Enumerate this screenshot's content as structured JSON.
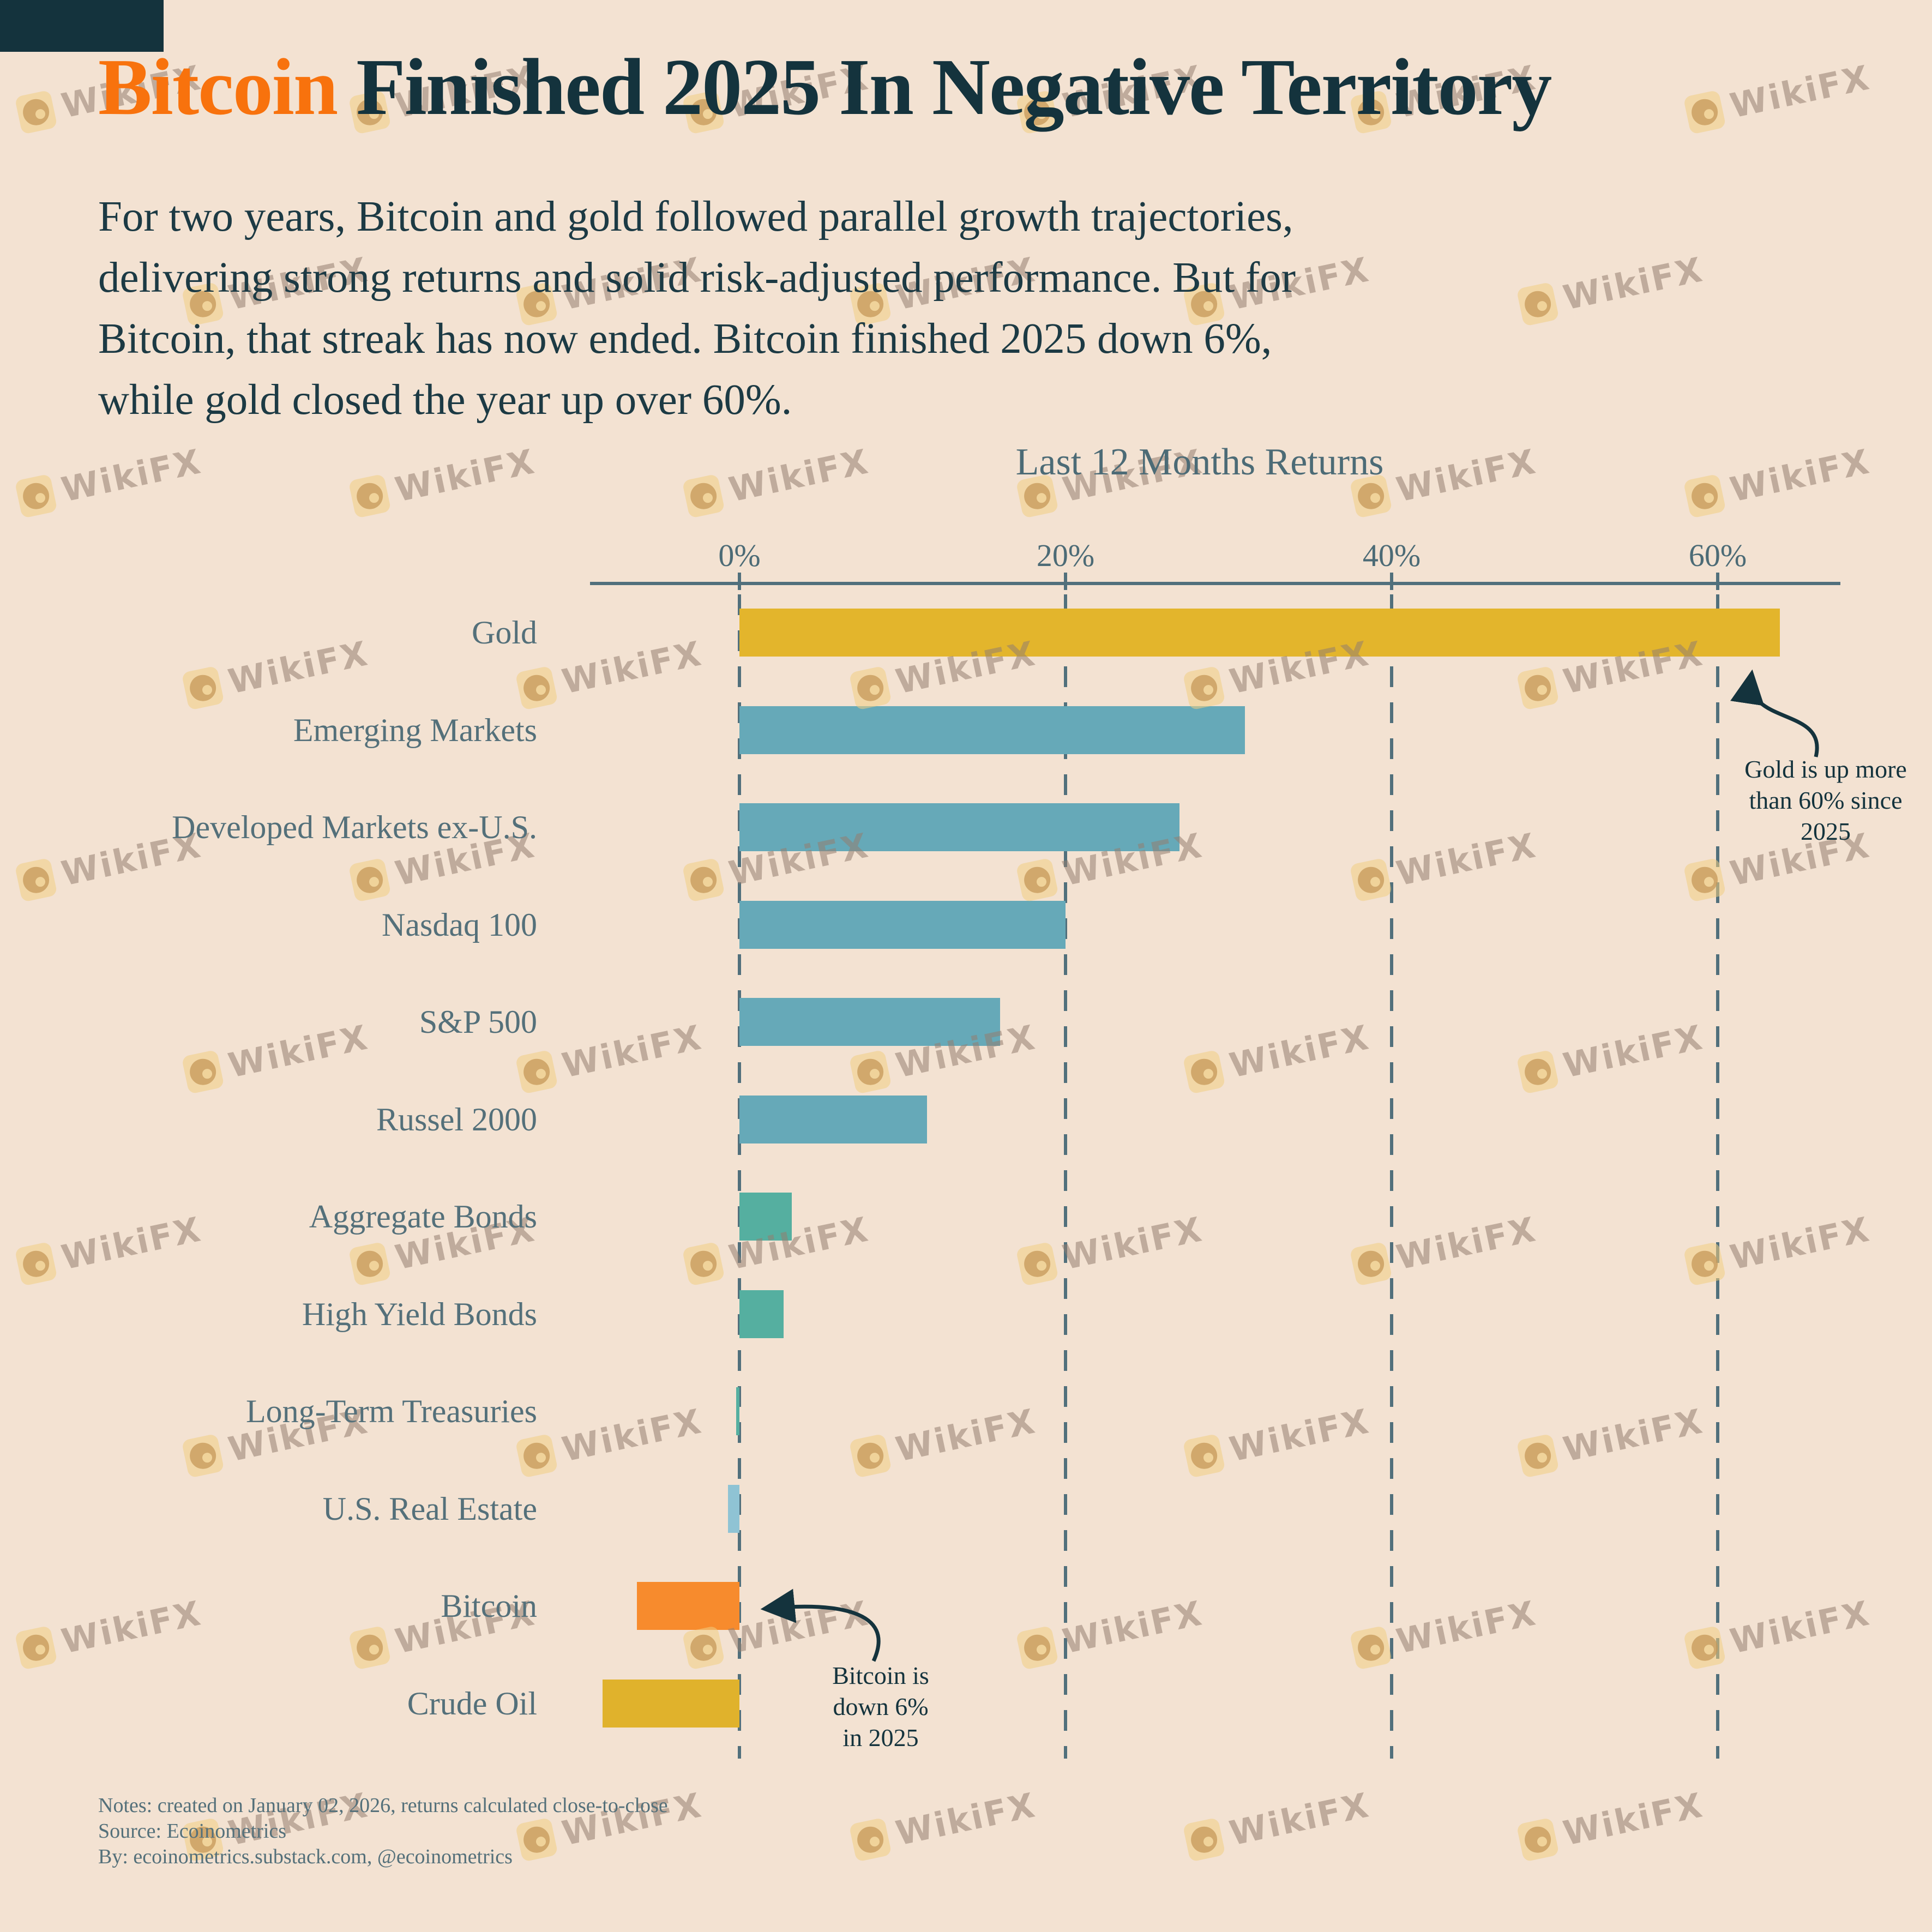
{
  "header": {
    "title_accent": "Bitcoin",
    "title_rest": " Finished 2025 In Negative Territory"
  },
  "intro": {
    "lines": [
      "For two years, Bitcoin and gold followed parallel growth trajectories,",
      "delivering strong returns and solid risk-adjusted performance. But for",
      "Bitcoin, that streak has now ended. Bitcoin finished 2025 down 6%,",
      "while gold closed the year up over 60%."
    ]
  },
  "watermark": {
    "text": "WikiFX"
  },
  "chart_data": {
    "type": "bar",
    "orientation": "horizontal",
    "title": "Last 12 Months Returns",
    "xlabel": "",
    "ylabel": "",
    "xlim": [
      -9.2,
      66
    ],
    "x_ticks": {
      "values": [
        0,
        20,
        40,
        60
      ],
      "labels": [
        "0%",
        "20%",
        "40%",
        "60%"
      ]
    },
    "grid": "dashed vertical gridlines at each x tick",
    "legend": "none",
    "categories": [
      "Gold",
      "Emerging Markets",
      "Developed Markets ex-U.S.",
      "Nasdaq 100",
      "S&P 500",
      "Russel 2000",
      "Aggregate Bonds",
      "High Yield Bonds",
      "Long-Term Treasuries",
      "U.S. Real Estate",
      "Bitcoin",
      "Crude Oil"
    ],
    "values": [
      63.8,
      31,
      27,
      20,
      16,
      11.5,
      3.2,
      2.7,
      -0.2,
      -0.7,
      -6.3,
      -8.4
    ],
    "bar_colors": [
      "#E3B52C",
      "#66A9B8",
      "#66A9B8",
      "#66A9B8",
      "#66A9B8",
      "#66A9B8",
      "#55AFA0",
      "#55AFA0",
      "#55AFA0",
      "#8FC3D4",
      "#F78B2D",
      "#E0B22C"
    ],
    "annotations": [
      {
        "id": "gold",
        "text_lines": [
          "Gold is up more",
          "than 60% since",
          "2025"
        ],
        "points_to": "end of Gold bar"
      },
      {
        "id": "bitcoin",
        "text_lines": [
          "Bitcoin is",
          "down 6%",
          "in 2025"
        ],
        "points_to": "end of Bitcoin bar"
      }
    ]
  },
  "footer": {
    "lines": [
      "Notes: created on January 02, 2026, returns calculated close-to-close",
      "Source: Ecoinometrics",
      "By: ecoinometrics.substack.com, @ecoinometrics"
    ]
  },
  "colors": {
    "background": "#F3E2D2",
    "title_dark": "#14333D",
    "title_accent": "#F8720D",
    "body_text": "#1C3A44",
    "muted_label": "#54707A",
    "axis": "#51707C",
    "gold_bar": "#E3B52C",
    "equity_bar": "#66A9B8",
    "bond_bar": "#55AFA0",
    "real_estate_bar": "#8FC3D4",
    "bitcoin_bar": "#F78B2D",
    "crude_bar": "#E0B22C"
  }
}
